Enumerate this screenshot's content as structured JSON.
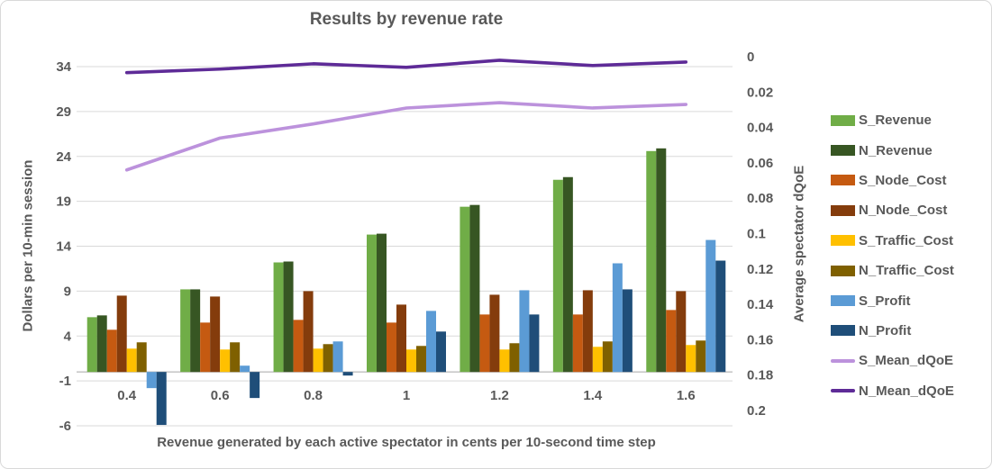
{
  "chart_data": {
    "type": "combo-bar-line",
    "title": "Results by revenue rate",
    "xlabel": "Revenue generated by each active spectator in cents per 10-second time step",
    "categories": [
      "0.4",
      "0.6",
      "0.8",
      "1",
      "1.2",
      "1.4",
      "1.6"
    ],
    "left_axis": {
      "label": "Dollars per 10-min session",
      "ticks": [
        34,
        29,
        24,
        19,
        14,
        9,
        4,
        -1,
        -6
      ],
      "range": [
        -6,
        34
      ]
    },
    "right_axis": {
      "label": "Average spectator dQoE",
      "ticks": [
        "0",
        "0.02",
        "0.04",
        "0.06",
        "0.08",
        "0.1",
        "0.12",
        "0.14",
        "0.16",
        "0.18",
        "0.2"
      ],
      "range": [
        0,
        0.2
      ],
      "inverted": true,
      "legend_note": "0 at top, 0.2 at bottom"
    },
    "bar_series": [
      {
        "name": "S_Revenue",
        "color": "#70AD47",
        "axis": "left",
        "values": [
          6.1,
          9.2,
          12.2,
          15.3,
          18.4,
          21.4,
          24.6
        ]
      },
      {
        "name": "N_Revenue",
        "color": "#375623",
        "axis": "left",
        "values": [
          6.3,
          9.2,
          12.3,
          15.4,
          18.6,
          21.7,
          24.9
        ]
      },
      {
        "name": "S_Node_Cost",
        "color": "#C55A11",
        "axis": "left",
        "values": [
          4.7,
          5.5,
          5.8,
          5.5,
          6.4,
          6.4,
          6.9
        ]
      },
      {
        "name": "N_Node_Cost",
        "color": "#843C0C",
        "axis": "left",
        "values": [
          8.5,
          8.4,
          9.0,
          7.5,
          8.6,
          9.1,
          9.0
        ]
      },
      {
        "name": "S_Traffic_Cost",
        "color": "#FFC000",
        "axis": "left",
        "values": [
          2.6,
          2.5,
          2.6,
          2.5,
          2.5,
          2.8,
          3.0
        ]
      },
      {
        "name": "N_Traffic_Cost",
        "color": "#7F6000",
        "axis": "left",
        "values": [
          3.3,
          3.3,
          3.1,
          2.9,
          3.2,
          3.4,
          3.5
        ]
      },
      {
        "name": "S_Profit",
        "color": "#5B9BD5",
        "axis": "left",
        "values": [
          -1.8,
          0.7,
          3.4,
          6.8,
          9.1,
          12.1,
          14.7
        ]
      },
      {
        "name": "N_Profit",
        "color": "#1F4E79",
        "axis": "left",
        "values": [
          -5.9,
          -2.9,
          -0.4,
          4.5,
          6.4,
          9.2,
          12.4
        ]
      }
    ],
    "line_series": [
      {
        "name": "S_Mean_dQoE",
        "color": "#BC92DC",
        "axis": "right",
        "values": [
          0.064,
          0.046,
          0.038,
          0.029,
          0.026,
          0.029,
          0.027
        ]
      },
      {
        "name": "N_Mean_dQoE",
        "color": "#5E2B97",
        "axis": "right",
        "values": [
          0.009,
          0.007,
          0.004,
          0.006,
          0.002,
          0.005,
          0.003
        ]
      }
    ],
    "style_colors": {
      "text": "#595959",
      "gridline": "#D9D9D9",
      "axis_line": "#BFBFBF"
    },
    "legend_position": "right"
  }
}
